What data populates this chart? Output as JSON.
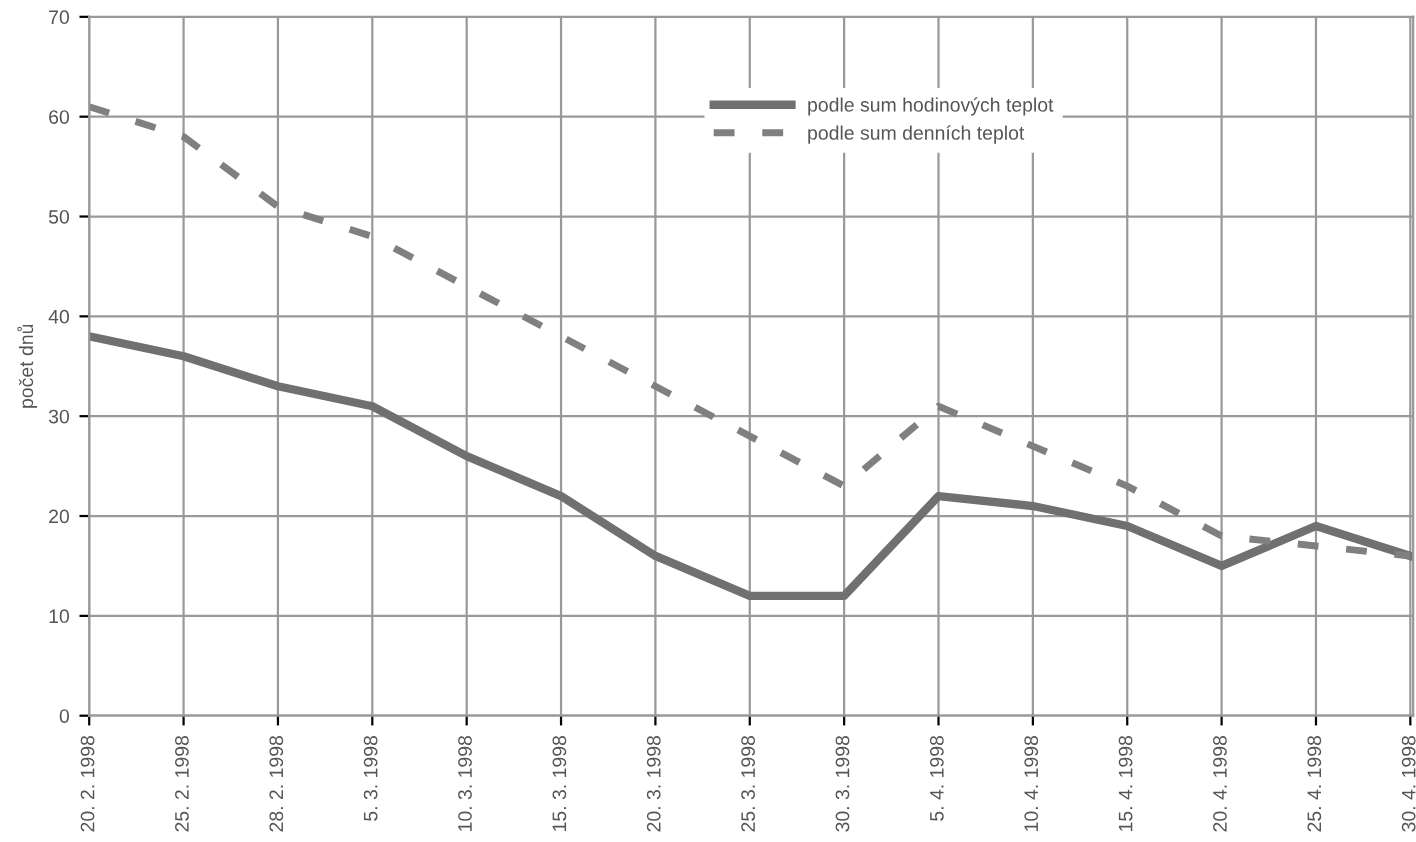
{
  "chart_data": {
    "type": "line",
    "ylabel": "počet dnů",
    "categories": [
      "20. 2. 1998",
      "25. 2. 1998",
      "28. 2. 1998",
      "5. 3. 1998",
      "10. 3. 1998",
      "15. 3. 1998",
      "20. 3. 1998",
      "25. 3. 1998",
      "30. 3. 1998",
      "5. 4. 1998",
      "10. 4. 1998",
      "15. 4. 1998",
      "20. 4. 1998",
      "25. 4. 1998",
      "30. 4. 1998"
    ],
    "series": [
      {
        "name": "podle sum hodinových teplot",
        "color": "#707070",
        "line_style": "solid",
        "values": [
          38,
          36,
          33,
          31,
          26,
          22,
          16,
          12,
          12,
          22,
          21,
          19,
          15,
          19,
          16
        ]
      },
      {
        "name": "podle sum denních teplot",
        "color": "#808080",
        "line_style": "dashed",
        "values": [
          61,
          58,
          51,
          48,
          43,
          38,
          33,
          28,
          23,
          31,
          27,
          23,
          18,
          17,
          16
        ]
      }
    ],
    "ylim": [
      0,
      70
    ],
    "yticks": [
      0,
      10,
      20,
      30,
      40,
      50,
      60,
      70
    ],
    "grid": true,
    "legend": "top",
    "marker": "none"
  }
}
